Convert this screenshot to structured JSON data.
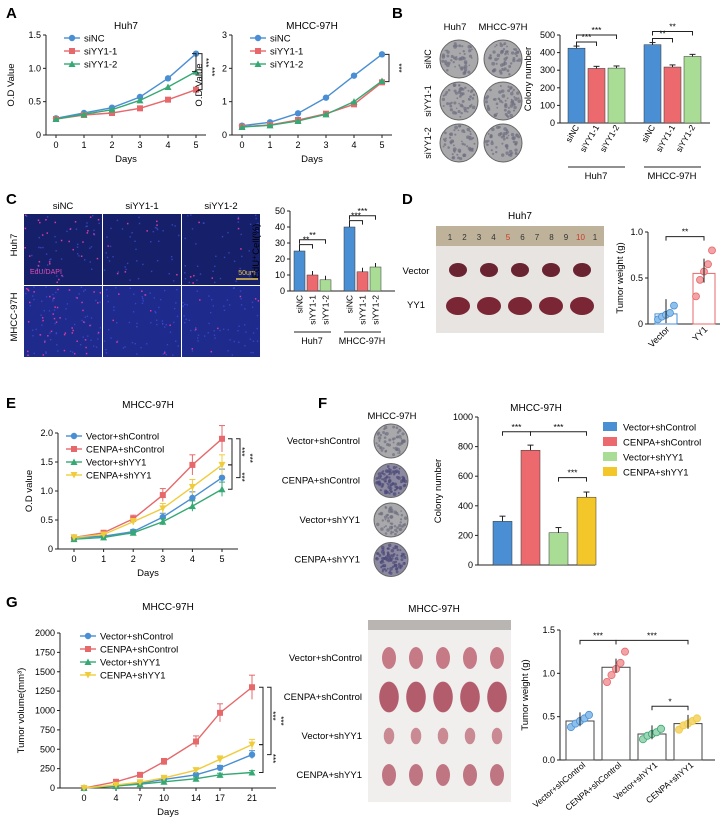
{
  "colors": {
    "blue": "#4a8fd3",
    "red": "#e6686b",
    "green": "#36a874",
    "yellow": "#f0cc3c",
    "blue_bar": "#4a8fd3",
    "red_bar": "#ec6a6e",
    "green_bar": "#a9dd96",
    "yellow_bar": "#f3c62a"
  },
  "panel_letters": [
    "A",
    "B",
    "C",
    "D",
    "E",
    "F",
    "G"
  ],
  "panelA": {
    "charts": [
      {
        "type": "line",
        "title": "Huh7",
        "ylabel": "O.D Value",
        "xlabel": "Days",
        "x": [
          0,
          1,
          2,
          3,
          4,
          5
        ],
        "ylim": [
          0,
          1.5
        ],
        "yticks": [
          "0",
          "0.5",
          "1.0",
          "1.5"
        ],
        "series": [
          {
            "name": "siNC",
            "values": [
              0.25,
              0.33,
              0.41,
              0.57,
              0.85,
              1.22
            ]
          },
          {
            "name": "siYY1-1",
            "values": [
              0.24,
              0.3,
              0.33,
              0.4,
              0.53,
              0.68
            ]
          },
          {
            "name": "siYY1-2",
            "values": [
              0.24,
              0.31,
              0.38,
              0.52,
              0.72,
              0.95
            ]
          }
        ],
        "sig": [
          "***",
          "***"
        ]
      },
      {
        "type": "line",
        "title": "MHCC-97H",
        "ylabel": "O.D Value",
        "xlabel": "Days",
        "x": [
          0,
          1,
          2,
          3,
          4,
          5
        ],
        "ylim": [
          0,
          3
        ],
        "yticks": [
          "0",
          "1",
          "2",
          "3"
        ],
        "series": [
          {
            "name": "siNC",
            "values": [
              0.28,
              0.38,
              0.65,
              1.12,
              1.78,
              2.42
            ]
          },
          {
            "name": "siYY1-1",
            "values": [
              0.25,
              0.3,
              0.45,
              0.64,
              0.92,
              1.58
            ]
          },
          {
            "name": "siYY1-2",
            "values": [
              0.24,
              0.29,
              0.42,
              0.62,
              1.0,
              1.62
            ]
          }
        ],
        "sig": [
          "***"
        ]
      }
    ],
    "legend": [
      "siNC",
      "siYY1-1",
      "siYY1-2"
    ]
  },
  "panelB": {
    "col_labels": [
      "Huh7",
      "MHCC-97H"
    ],
    "row_labels": [
      "siNC",
      "siYY1-1",
      "siYY1-2"
    ],
    "chart_data": {
      "type": "bar",
      "ylabel": "Colony number",
      "ylim": [
        0,
        500
      ],
      "yticks": [
        "0",
        "100",
        "200",
        "300",
        "400",
        "500"
      ],
      "groups": [
        "Huh7",
        "MHCC-97H"
      ],
      "categories": [
        "siNC",
        "siYY1-1",
        "siYY1-2"
      ],
      "values": [
        [
          425,
          310,
          312
        ],
        [
          445,
          318,
          378
        ]
      ],
      "sig": [
        "***",
        "***",
        "**",
        "**"
      ]
    }
  },
  "panelC": {
    "col_labels": [
      "siNC",
      "siYY1-1",
      "siYY1-2"
    ],
    "row_labels": [
      "Huh7",
      "MHCC-97H"
    ],
    "stain_label": "EdU/DAPI",
    "scale_label": "50um",
    "chart_data": {
      "type": "bar",
      "ylabel": "EdU⁺Cell(%)",
      "ylim": [
        0,
        50
      ],
      "yticks": [
        "0",
        "10",
        "20",
        "30",
        "40",
        "50"
      ],
      "groups": [
        "Huh7",
        "MHCC-97H"
      ],
      "categories": [
        "siNC",
        "siYY1-1",
        "siYY1-2"
      ],
      "values": [
        [
          25,
          10,
          7
        ],
        [
          40,
          12,
          15
        ]
      ],
      "sig": [
        "**",
        "**",
        "***",
        "***"
      ]
    }
  },
  "panelD": {
    "title": "Huh7",
    "ruler_numbers": [
      "1",
      "2",
      "3",
      "4",
      "5",
      "6",
      "7",
      "8",
      "9",
      "10",
      "1"
    ],
    "row_labels": [
      "Vector",
      "YY1"
    ],
    "chart_data": {
      "type": "scatter",
      "ylabel": "Tumor weight (g)",
      "ylim": [
        0,
        1.0
      ],
      "yticks": [
        "0",
        "0.5",
        "1.0"
      ],
      "categories": [
        "Vector",
        "YY1"
      ],
      "means": [
        0.11,
        0.55
      ],
      "points": [
        [
          0.05,
          0.08,
          0.1,
          0.12,
          0.2
        ],
        [
          0.3,
          0.48,
          0.57,
          0.65,
          0.8
        ]
      ],
      "sig": "**"
    }
  },
  "panelE": {
    "chart_data": {
      "type": "line",
      "title": "MHCC-97H",
      "ylabel": "O.D  value",
      "xlabel": "Days",
      "x": [
        0,
        1,
        2,
        3,
        4,
        5
      ],
      "ylim": [
        0,
        2.0
      ],
      "yticks": [
        "0",
        "0.5",
        "1.0",
        "1.5",
        "2.0"
      ],
      "series": [
        {
          "name": "Vector+shControl",
          "values": [
            0.2,
            0.22,
            0.3,
            0.55,
            0.88,
            1.23
          ]
        },
        {
          "name": "CENPA+shControl",
          "values": [
            0.2,
            0.28,
            0.52,
            0.93,
            1.45,
            1.9
          ]
        },
        {
          "name": "Vector+shYY1",
          "values": [
            0.17,
            0.2,
            0.28,
            0.47,
            0.74,
            1.03
          ]
        },
        {
          "name": "CENPA+shYY1",
          "values": [
            0.2,
            0.25,
            0.47,
            0.7,
            1.07,
            1.45
          ]
        }
      ],
      "sig": [
        "***",
        "***",
        "***"
      ]
    }
  },
  "panelF": {
    "title": "MHCC-97H",
    "row_labels": [
      "Vector+shControl",
      "CENPA+shControl",
      "Vector+shYY1",
      "CENPA+shYY1"
    ],
    "chart_data": {
      "type": "bar",
      "title": "MHCC-97H",
      "ylabel": "Colony number",
      "ylim": [
        0,
        1000
      ],
      "yticks": [
        "0",
        "200",
        "400",
        "600",
        "800",
        "1000"
      ],
      "categories": [
        "Vector+shControl",
        "CENPA+shControl",
        "Vector+shYY1",
        "CENPA+shYY1"
      ],
      "values": [
        295,
        775,
        218,
        458
      ],
      "sig": [
        "***",
        "***",
        "***"
      ]
    }
  },
  "panelG": {
    "chart_data": [
      {
        "type": "line",
        "title": "MHCC-97H",
        "ylabel": "Tumor volume(mm³)",
        "xlabel": "Days",
        "x": [
          0,
          4,
          7,
          10,
          14,
          17,
          21
        ],
        "ylim": [
          0,
          2000
        ],
        "yticks": [
          "0",
          "250",
          "500",
          "750",
          "1000",
          "1250",
          "1500",
          "1750",
          "2000"
        ],
        "series": [
          {
            "name": "Vector+shControl",
            "values": [
              0,
              30,
              60,
              110,
              170,
              260,
              430
            ]
          },
          {
            "name": "CENPA+shControl",
            "values": [
              0,
              80,
              170,
              340,
              600,
              970,
              1300
            ]
          },
          {
            "name": "Vector+shYY1",
            "values": [
              0,
              25,
              50,
              80,
              120,
              170,
              200
            ]
          },
          {
            "name": "CENPA+shYY1",
            "values": [
              0,
              40,
              75,
              130,
              230,
              370,
              560
            ]
          }
        ],
        "sig": [
          "***",
          "***",
          "***"
        ]
      },
      {
        "type": "scatter",
        "ylabel": "Tumor weight (g)",
        "ylim": [
          0,
          1.5
        ],
        "yticks": [
          "0.0",
          "0.5",
          "1.0",
          "1.5"
        ],
        "categories": [
          "Vector+shControl",
          "CENPA+shControl",
          "Vector+shYY1",
          "CENPA+shYY1"
        ],
        "means": [
          0.45,
          1.07,
          0.3,
          0.42
        ],
        "points": [
          [
            0.38,
            0.42,
            0.45,
            0.48,
            0.52
          ],
          [
            0.9,
            0.98,
            1.05,
            1.12,
            1.25
          ],
          [
            0.24,
            0.28,
            0.3,
            0.32,
            0.36
          ],
          [
            0.35,
            0.4,
            0.42,
            0.45,
            0.48
          ]
        ],
        "sig": [
          "***",
          "***",
          "*"
        ]
      }
    ],
    "photo_title": "MHCC-97H",
    "photo_rows": [
      "Vector+shControl",
      "CENPA+shControl",
      "Vector+shYY1",
      "CENPA+shYY1"
    ]
  }
}
